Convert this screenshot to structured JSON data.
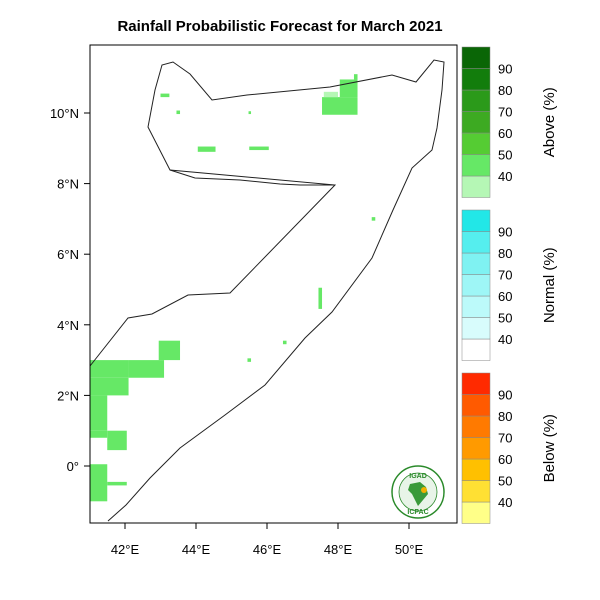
{
  "title": "Rainfall Probabilistic Forecast for March 2021",
  "colors": {
    "above": [
      "#b5f7b5",
      "#66e866",
      "#55cc33",
      "#3daa22",
      "#2b9a1a",
      "#127d0c",
      "#0a6606",
      "#064d04"
    ],
    "normal": [
      "#ffffff",
      "#d8fcfc",
      "#bcfafa",
      "#9ef6f6",
      "#7ff2f2",
      "#55eeee",
      "#22e7e7",
      "#00e3e3"
    ],
    "below": [
      "#ffff88",
      "#ffe033",
      "#ffc000",
      "#ff9a00",
      "#ff7a00",
      "#ff5a00",
      "#ff2a00",
      "#ff0000"
    ],
    "forecast_fill": "#66e866"
  },
  "legends": [
    {
      "title": "Above (%)",
      "ticks": [
        "90",
        "80",
        "70",
        "60",
        "50",
        "40"
      ]
    },
    {
      "title": "Normal (%)",
      "ticks": [
        "90",
        "80",
        "70",
        "60",
        "50",
        "40"
      ]
    },
    {
      "title": "Below (%)",
      "ticks": [
        "90",
        "80",
        "70",
        "60",
        "50",
        "40"
      ]
    }
  ],
  "axes": {
    "lat_labels": [
      "10°N",
      "8°N",
      "6°N",
      "4°N",
      "2°N",
      "0°"
    ],
    "lon_labels": [
      "42°E",
      "44°E",
      "46°E",
      "48°E",
      "50°E"
    ]
  },
  "map_extent": {
    "lon_min": 41,
    "lon_max": 51.4,
    "lat_min": -1.65,
    "lat_max": 11.9
  },
  "forecast_cells": [
    [
      41.0,
      3.0,
      42.1,
      2.5
    ],
    [
      42.1,
      3.0,
      43.1,
      2.5
    ],
    [
      42.95,
      3.55,
      43.55,
      3.0
    ],
    [
      41.0,
      2.5,
      42.1,
      2.0
    ],
    [
      41.0,
      2.0,
      41.5,
      1.0
    ],
    [
      41.5,
      1.0,
      42.05,
      0.45
    ],
    [
      41.0,
      1.0,
      41.5,
      0.8
    ],
    [
      41.0,
      0.05,
      41.5,
      -1.0
    ],
    [
      41.5,
      -1.0,
      41.0,
      -1.0
    ],
    [
      41.5,
      -0.45,
      42.05,
      -0.55
    ],
    [
      47.55,
      10.45,
      48.55,
      9.95
    ],
    [
      48.05,
      10.95,
      48.55,
      10.45
    ],
    [
      48.45,
      11.1,
      48.55,
      10.95
    ],
    [
      44.05,
      9.05,
      44.55,
      8.9
    ],
    [
      45.5,
      9.05,
      46.05,
      8.95
    ],
    [
      47.45,
      5.05,
      47.55,
      4.45
    ],
    [
      48.95,
      7.05,
      49.05,
      6.95
    ],
    [
      43.0,
      10.55,
      43.25,
      10.45
    ],
    [
      43.45,
      10.07,
      43.55,
      9.97
    ],
    [
      45.48,
      10.05,
      45.55,
      9.97
    ],
    [
      45.45,
      3.05,
      45.55,
      2.95
    ],
    [
      46.45,
      3.55,
      46.55,
      3.45
    ]
  ],
  "forecast_cells_light": [
    [
      47.6,
      10.6,
      48.0,
      10.45
    ]
  ],
  "logo": {
    "top_text": "IGAD",
    "bottom_text": "ICPAC"
  }
}
